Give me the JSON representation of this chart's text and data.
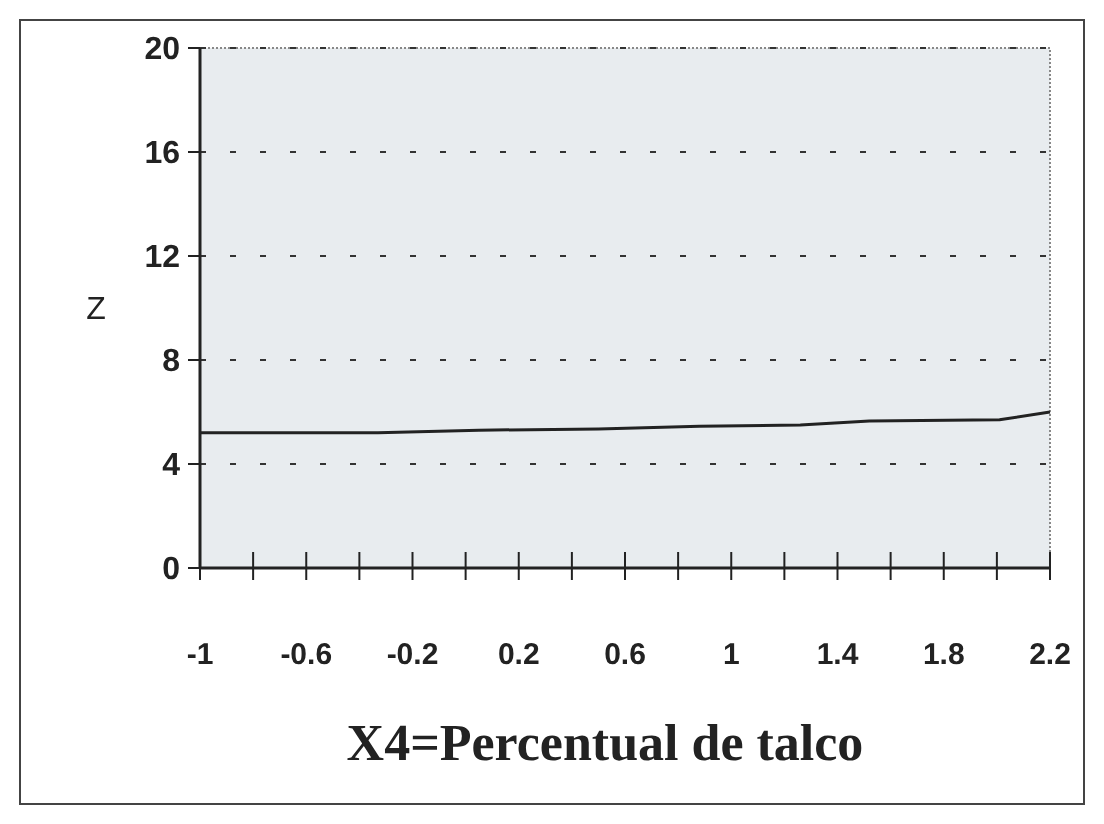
{
  "chart_data": {
    "type": "line",
    "xlabel": "X4=Percentual de talco",
    "ylabel": "Z",
    "x": [
      -1,
      -0.33,
      0.05,
      0.5,
      0.88,
      1.26,
      1.52,
      2.01,
      2.2
    ],
    "series": [
      {
        "color": "#222222",
        "values": [
          5.2,
          5.2,
          5.3,
          5.35,
          5.45,
          5.5,
          5.65,
          5.7,
          6.0
        ]
      }
    ],
    "xlim": [
      -1,
      2.2
    ],
    "xticks": [
      -1,
      {
        "value": -0.8,
        "label": null
      },
      -0.6,
      {
        "value": -0.4,
        "label": null
      },
      -0.2,
      {
        "value": 0,
        "label": null
      },
      0.2,
      {
        "value": 0.4,
        "label": null
      },
      0.6,
      {
        "value": 0.8,
        "label": null
      },
      1,
      {
        "value": 1.2,
        "label": null
      },
      1.4,
      {
        "value": 1.6,
        "label": null
      },
      1.8,
      {
        "value": 2,
        "label": null
      },
      2.2
    ],
    "ylim": [
      0,
      20
    ],
    "yticks": [
      0,
      4,
      8,
      12,
      16,
      20
    ],
    "grid": "y",
    "marker": "none",
    "line_style": "solid"
  }
}
